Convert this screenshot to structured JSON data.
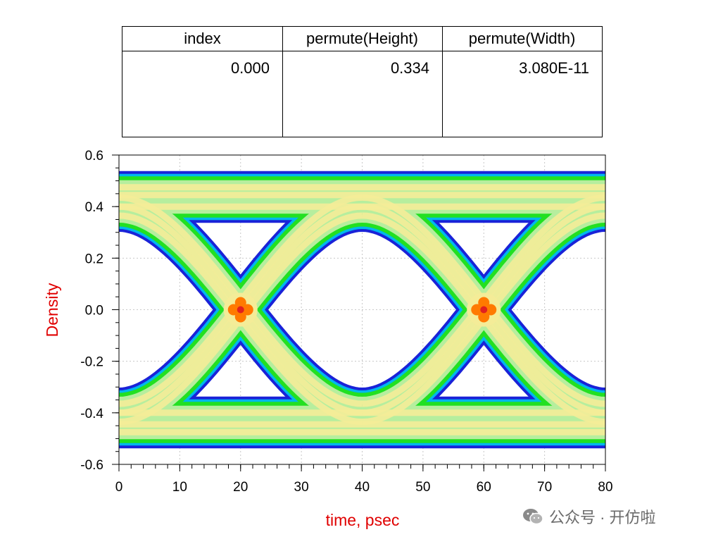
{
  "table": {
    "columns": [
      {
        "header": "index",
        "value": "0.000"
      },
      {
        "header": "permute(Height)",
        "value": "0.334"
      },
      {
        "header": "permute(Width)",
        "value": "3.080E-11"
      }
    ]
  },
  "chart_data": {
    "type": "heatmap",
    "subtype": "eye-diagram density",
    "title": "",
    "xlabel": "time, psec",
    "ylabel": "Density",
    "xlim": [
      0,
      80
    ],
    "ylim": [
      -0.6,
      0.6
    ],
    "x_ticks": [
      0,
      10,
      20,
      30,
      40,
      50,
      60,
      70,
      80
    ],
    "x_tick_labels": [
      "0",
      "10",
      "20",
      "30",
      "40",
      "50",
      "60",
      "70",
      "80"
    ],
    "y_ticks": [
      -0.6,
      -0.4,
      -0.2,
      0.0,
      0.2,
      0.4,
      0.6
    ],
    "y_tick_labels": [
      "-0.6",
      "-0.4",
      "-0.2",
      "0.0",
      "0.2",
      "0.4",
      "0.6"
    ],
    "grid": true,
    "unit_interval_ps": 40,
    "crossings_ps": [
      20,
      60
    ],
    "levels": {
      "high": 0.4,
      "low": -0.4
    },
    "eye_height": 0.334,
    "eye_width_s": 3.08e-11,
    "density_colors": {
      "lowest": "#1a22d8",
      "low": "#00b7ee",
      "mid_low": "#22e022",
      "mid": "#b6ee9e",
      "high": "#f4ec98",
      "highest": "#ff7a00",
      "peak": "#e02020"
    },
    "label_color": "#e00000"
  },
  "watermark": {
    "text": "公众号 · 开仿啦",
    "icon": "wechat-icon"
  }
}
